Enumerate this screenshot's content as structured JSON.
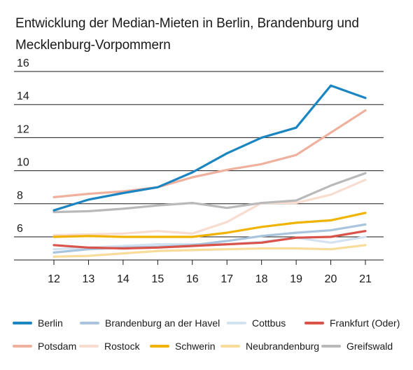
{
  "title": {
    "line1": "Entwicklung der Median-Mieten in Berlin, Brandenburg und",
    "line2": "Mecklenburg-Vorpommern"
  },
  "chart_data": {
    "type": "line",
    "title": "Entwicklung der Median-Mieten in Berlin, Brandenburg und Mecklenburg-Vorpommern",
    "xlabel": "",
    "ylabel": "",
    "x": [
      "12",
      "13",
      "14",
      "15",
      "16",
      "17",
      "18",
      "19",
      "20",
      "21"
    ],
    "y_ticks": [
      6,
      8,
      10,
      12,
      14,
      16
    ],
    "ylim": [
      4.6,
      16
    ],
    "grid": "horizontal",
    "legend_position": "bottom",
    "series": [
      {
        "name": "Berlin",
        "color": "#1a85c0",
        "values": [
          7.6,
          8.25,
          8.65,
          9.0,
          9.9,
          11.05,
          12.0,
          12.6,
          15.15,
          14.4
        ]
      },
      {
        "name": "Brandenburg an der Havel",
        "color": "#a9c4dd",
        "values": [
          5.05,
          5.25,
          5.35,
          5.4,
          5.5,
          5.75,
          6.05,
          6.25,
          6.4,
          6.75
        ]
      },
      {
        "name": "Cottbus",
        "color": "#d3e2f1",
        "values": [
          5.25,
          5.35,
          5.45,
          5.55,
          5.55,
          5.55,
          5.7,
          5.95,
          5.65,
          6.0
        ]
      },
      {
        "name": "Frankfurt (Oder)",
        "color": "#d9534a",
        "values": [
          5.5,
          5.35,
          5.3,
          5.35,
          5.45,
          5.55,
          5.65,
          5.95,
          6.0,
          6.35
        ]
      },
      {
        "name": "Potsdam",
        "color": "#efb09d",
        "values": [
          8.4,
          8.6,
          8.75,
          9.0,
          9.6,
          10.05,
          10.4,
          10.95,
          12.3,
          13.65
        ]
      },
      {
        "name": "Rostock",
        "color": "#f7dccf",
        "values": [
          6.1,
          6.15,
          6.2,
          6.35,
          6.2,
          6.9,
          8.05,
          8.05,
          8.55,
          9.45
        ]
      },
      {
        "name": "Schwerin",
        "color": "#f0b400",
        "values": [
          6.0,
          6.05,
          6.0,
          6.0,
          6.0,
          6.25,
          6.6,
          6.85,
          7.0,
          7.45
        ]
      },
      {
        "name": "Neubrandenburg",
        "color": "#f7dc9a",
        "values": [
          4.8,
          4.85,
          5.0,
          5.15,
          5.2,
          5.25,
          5.3,
          5.3,
          5.25,
          5.5
        ]
      },
      {
        "name": "Greifswald",
        "color": "#b9b9b9",
        "values": [
          7.5,
          7.55,
          7.7,
          7.9,
          8.05,
          7.75,
          8.05,
          8.2,
          9.1,
          9.85
        ]
      }
    ]
  }
}
